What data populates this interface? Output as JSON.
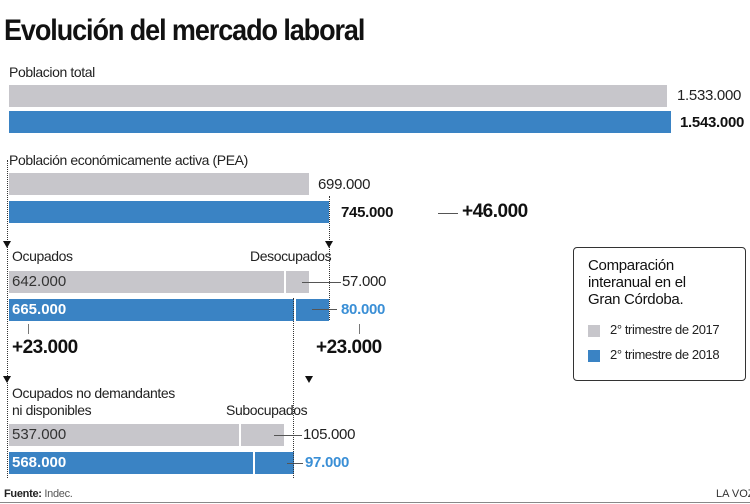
{
  "chart_data": {
    "type": "bar",
    "title": "Evolución del mercado laboral",
    "colors": {
      "2017": "#c7c6cb",
      "2018": "#3a83c4",
      "highlight_text": "#3a8fd6"
    },
    "legend": {
      "title": "Comparación interanual en el Gran Córdoba.",
      "title_lines": [
        "Comparación",
        "interanual en el",
        "Gran Córdoba."
      ],
      "placement": "right",
      "items": [
        {
          "label": "2° trimestre de 2017",
          "color": "#c7c6cb"
        },
        {
          "label": "2° trimestre de 2018",
          "color": "#3a83c4"
        }
      ]
    },
    "groups": [
      {
        "label": "Poblacion total",
        "series": [
          {
            "period": "2° trimestre de 2017",
            "values": [
              1533000
            ],
            "labels": [
              "1.533.000"
            ]
          },
          {
            "period": "2° trimestre de 2018",
            "values": [
              1543000
            ],
            "labels": [
              "1.543.000"
            ]
          }
        ]
      },
      {
        "label": "Población económicamente activa (PEA)",
        "series": [
          {
            "period": "2° trimestre de 2017",
            "values": [
              699000
            ],
            "labels": [
              "699.000"
            ]
          },
          {
            "period": "2° trimestre de 2018",
            "values": [
              745000
            ],
            "labels": [
              "745.000"
            ]
          }
        ],
        "change": "+46.000"
      },
      {
        "label": "Ocupados",
        "label2": "Desocupados",
        "series": [
          {
            "period": "2° trimestre de 2017",
            "values": [
              642000,
              57000
            ],
            "labels": [
              "642.000",
              "57.000"
            ]
          },
          {
            "period": "2° trimestre de 2018",
            "values": [
              665000,
              80000
            ],
            "labels": [
              "665.000",
              "80.000"
            ]
          }
        ],
        "change": "+23.000",
        "change2": "+23.000"
      },
      {
        "label": "Ocupados no demandantes",
        "label_line2": "ni disponibles",
        "label2": "Subocupados",
        "series": [
          {
            "period": "2° trimestre de 2017",
            "values": [
              537000,
              105000
            ],
            "labels": [
              "537.000",
              "105.000"
            ]
          },
          {
            "period": "2° trimestre de 2018",
            "values": [
              568000,
              97000
            ],
            "labels": [
              "568.000",
              "97.000"
            ]
          }
        ]
      }
    ]
  },
  "footer": {
    "source_label": "Fuente:",
    "source": "Indec.",
    "credit": "LA VOZ"
  }
}
